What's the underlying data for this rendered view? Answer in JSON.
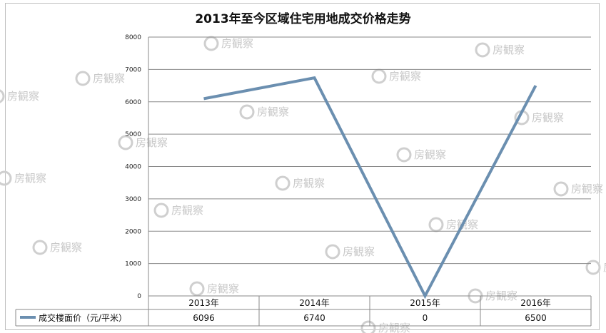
{
  "chart_data": {
    "type": "line",
    "title": "2013年至今区域住宅用地成交价格走势",
    "categories": [
      "2013年",
      "2014年",
      "2015年",
      "2016年"
    ],
    "series": [
      {
        "name": "成交楼面价（元/平米）",
        "values": [
          6096,
          6740,
          0,
          6500
        ],
        "color": "#6b8fb0"
      }
    ],
    "table_values": [
      "6096",
      "6740",
      "0",
      "6500"
    ],
    "y_ticks": [
      "0",
      "1000",
      "2000",
      "3000",
      "4000",
      "5000",
      "6000",
      "7000",
      "8000"
    ],
    "ylim": [
      0,
      8000
    ],
    "grid": true,
    "legend": "data-table"
  },
  "watermark": {
    "text": "房観察",
    "color": "#c8c8c8"
  }
}
